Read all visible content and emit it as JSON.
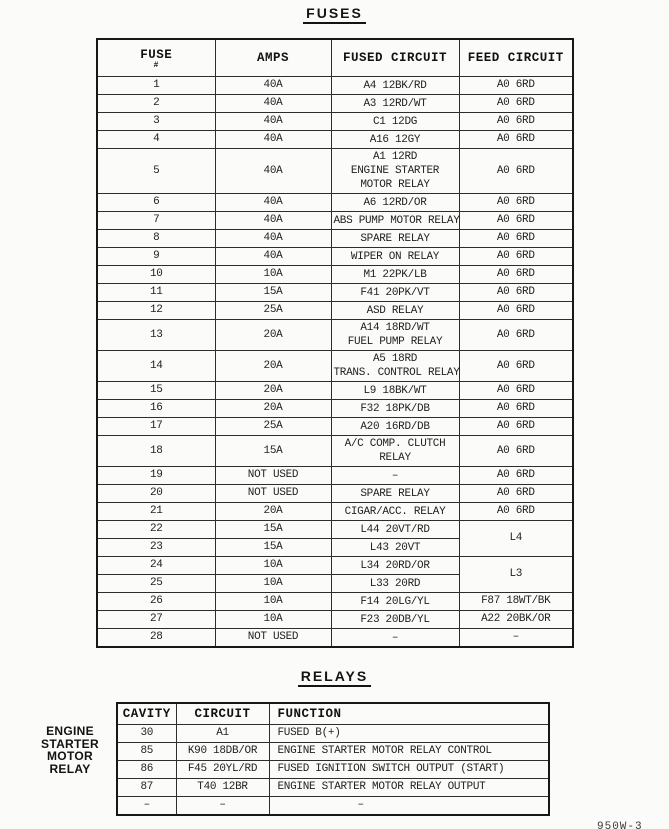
{
  "fuses_section": {
    "title": "FUSES",
    "table": {
      "col_headers": {
        "fuse": "FUSE",
        "fuse_sub": "#",
        "amps": "AMPS",
        "fused_circuit": "FUSED CIRCUIT",
        "feed_circuit": "FEED CIRCUIT"
      },
      "rows": [
        {
          "fuse": "1",
          "amps": "40A",
          "circuit": [
            "A4 12BK/RD"
          ],
          "feed": "A0 6RD",
          "feed_span": 1
        },
        {
          "fuse": "2",
          "amps": "40A",
          "circuit": [
            "A3 12RD/WT"
          ],
          "feed": "A0 6RD",
          "feed_span": 1
        },
        {
          "fuse": "3",
          "amps": "40A",
          "circuit": [
            "C1 12DG"
          ],
          "feed": "A0 6RD",
          "feed_span": 1
        },
        {
          "fuse": "4",
          "amps": "40A",
          "circuit": [
            "A16 12GY"
          ],
          "feed": "A0 6RD",
          "feed_span": 1
        },
        {
          "fuse": "5",
          "amps": "40A",
          "circuit": [
            "A1 12RD",
            "ENGINE STARTER",
            "MOTOR RELAY"
          ],
          "feed": "A0 6RD",
          "feed_span": 1
        },
        {
          "fuse": "6",
          "amps": "40A",
          "circuit": [
            "A6 12RD/OR"
          ],
          "feed": "A0 6RD",
          "feed_span": 1
        },
        {
          "fuse": "7",
          "amps": "40A",
          "circuit": [
            "ABS PUMP MOTOR RELAY"
          ],
          "feed": "A0 6RD",
          "feed_span": 1
        },
        {
          "fuse": "8",
          "amps": "40A",
          "circuit": [
            "SPARE RELAY"
          ],
          "feed": "A0 6RD",
          "feed_span": 1
        },
        {
          "fuse": "9",
          "amps": "40A",
          "circuit": [
            "WIPER ON RELAY"
          ],
          "feed": "A0 6RD",
          "feed_span": 1
        },
        {
          "fuse": "10",
          "amps": "10A",
          "circuit": [
            "M1 22PK/LB"
          ],
          "feed": "A0 6RD",
          "feed_span": 1
        },
        {
          "fuse": "11",
          "amps": "15A",
          "circuit": [
            "F41 20PK/VT"
          ],
          "feed": "A0 6RD",
          "feed_span": 1
        },
        {
          "fuse": "12",
          "amps": "25A",
          "circuit": [
            "ASD RELAY"
          ],
          "feed": "A0 6RD",
          "feed_span": 1
        },
        {
          "fuse": "13",
          "amps": "20A",
          "circuit": [
            "A14 18RD/WT",
            "FUEL PUMP RELAY"
          ],
          "feed": "A0 6RD",
          "feed_span": 1
        },
        {
          "fuse": "14",
          "amps": "20A",
          "circuit": [
            "A5 18RD",
            "TRANS. CONTROL RELAY"
          ],
          "feed": "A0 6RD",
          "feed_span": 1
        },
        {
          "fuse": "15",
          "amps": "20A",
          "circuit": [
            "L9 18BK/WT"
          ],
          "feed": "A0 6RD",
          "feed_span": 1
        },
        {
          "fuse": "16",
          "amps": "20A",
          "circuit": [
            "F32 18PK/DB"
          ],
          "feed": "A0 6RD",
          "feed_span": 1
        },
        {
          "fuse": "17",
          "amps": "25A",
          "circuit": [
            "A20 16RD/DB"
          ],
          "feed": "A0 6RD",
          "feed_span": 1
        },
        {
          "fuse": "18",
          "amps": "15A",
          "circuit": [
            "A/C COMP. CLUTCH",
            "RELAY"
          ],
          "feed": "A0 6RD",
          "feed_span": 1
        },
        {
          "fuse": "19",
          "amps": "NOT USED",
          "circuit": [
            "–"
          ],
          "feed": "A0 6RD",
          "feed_span": 1
        },
        {
          "fuse": "20",
          "amps": "NOT USED",
          "circuit": [
            "SPARE RELAY"
          ],
          "feed": "A0 6RD",
          "feed_span": 1
        },
        {
          "fuse": "21",
          "amps": "20A",
          "circuit": [
            "CIGAR/ACC. RELAY"
          ],
          "feed": "A0 6RD",
          "feed_span": 1
        },
        {
          "fuse": "22",
          "amps": "15A",
          "circuit": [
            "L44 20VT/RD"
          ],
          "feed": "L4",
          "feed_span": 2
        },
        {
          "fuse": "23",
          "amps": "15A",
          "circuit": [
            "L43 20VT"
          ],
          "feed": null,
          "feed_span": 0
        },
        {
          "fuse": "24",
          "amps": "10A",
          "circuit": [
            "L34 20RD/OR"
          ],
          "feed": "L3",
          "feed_span": 2
        },
        {
          "fuse": "25",
          "amps": "10A",
          "circuit": [
            "L33 20RD"
          ],
          "feed": null,
          "feed_span": 0
        },
        {
          "fuse": "26",
          "amps": "10A",
          "circuit": [
            "F14 20LG/YL"
          ],
          "feed": "F87 18WT/BK",
          "feed_span": 1
        },
        {
          "fuse": "27",
          "amps": "10A",
          "circuit": [
            "F23 20DB/YL"
          ],
          "feed": "A22 20BK/OR",
          "feed_span": 1
        },
        {
          "fuse": "28",
          "amps": "NOT USED",
          "circuit": [
            "–"
          ],
          "feed": "–",
          "feed_span": 1
        }
      ]
    }
  },
  "relays_section": {
    "title": "RELAYS",
    "side_label_lines": [
      "ENGINE",
      "STARTER",
      "MOTOR",
      "RELAY"
    ],
    "table": {
      "col_headers": {
        "cavity": "CAVITY",
        "circuit": "CIRCUIT",
        "function": "FUNCTION"
      },
      "rows": [
        {
          "cavity": "30",
          "circuit": "A1",
          "function": "FUSED B(+)"
        },
        {
          "cavity": "85",
          "circuit": "K90 18DB/OR",
          "function": "ENGINE STARTER MOTOR RELAY CONTROL"
        },
        {
          "cavity": "86",
          "circuit": "F45 20YL/RD",
          "function": "FUSED IGNITION SWITCH OUTPUT (START)"
        },
        {
          "cavity": "87",
          "circuit": "T40 12BR",
          "function": "ENGINE STARTER MOTOR RELAY OUTPUT"
        },
        {
          "cavity": "–",
          "circuit": "–",
          "function": "–"
        }
      ]
    }
  },
  "footer": {
    "page_code": "950W-3"
  }
}
